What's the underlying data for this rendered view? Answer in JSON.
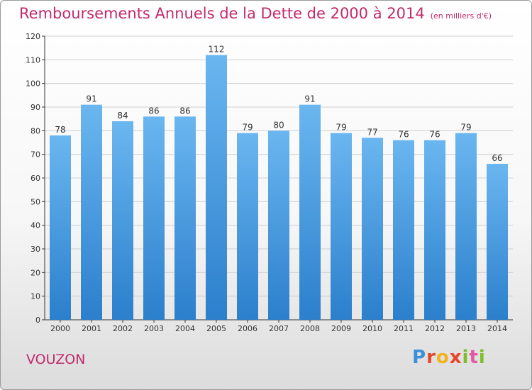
{
  "header": {
    "title": "Remboursements Annuels de la Dette de 2000 à 2014",
    "unit": "(en milliers d'€)"
  },
  "footer": {
    "place": "VOUZON",
    "logo": "Proxiti"
  },
  "colors": {
    "title": "#c22a6c",
    "bar_top": "#6ab6f0",
    "bar_bottom": "#2b7fcc",
    "grid": "#cfcfcf"
  },
  "chart_data": {
    "type": "bar",
    "title": "Remboursements Annuels de la Dette de 2000 à 2014",
    "xlabel": "",
    "ylabel": "",
    "categories": [
      "2000",
      "2001",
      "2002",
      "2003",
      "2004",
      "2005",
      "2006",
      "2007",
      "2008",
      "2009",
      "2010",
      "2011",
      "2012",
      "2013",
      "2014"
    ],
    "values": [
      78,
      91,
      84,
      86,
      86,
      112,
      79,
      80,
      91,
      79,
      77,
      76,
      76,
      79,
      66
    ],
    "ylim": [
      0,
      120
    ],
    "yticks": [
      0,
      10,
      20,
      30,
      40,
      50,
      60,
      70,
      80,
      90,
      100,
      110,
      120
    ],
    "grid": true,
    "data_labels": true,
    "legend": "none"
  }
}
